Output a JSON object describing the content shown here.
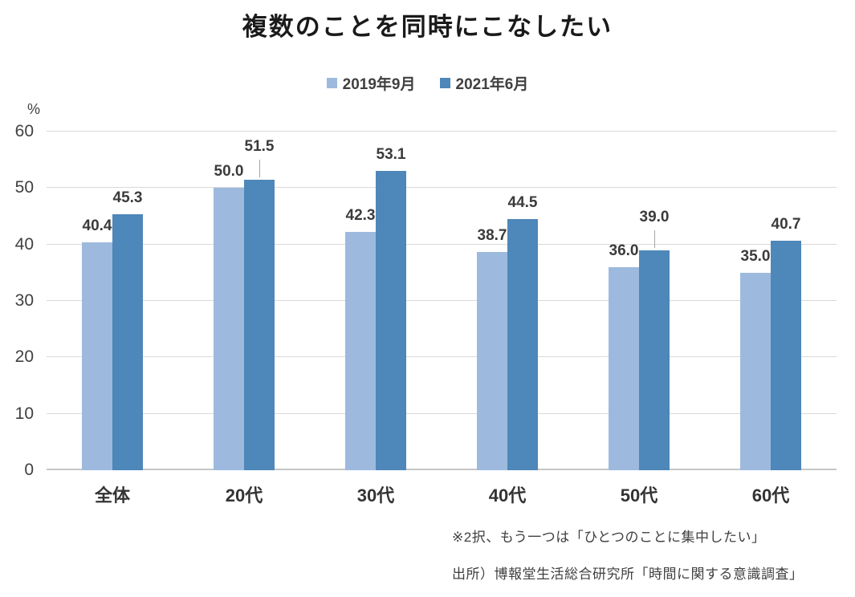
{
  "title": "複数のことを同時にこなしたい",
  "y_axis_unit": "%",
  "legend": [
    {
      "label": "2019年9月",
      "color": "#9dbade"
    },
    {
      "label": "2021年6月",
      "color": "#4e87b9"
    }
  ],
  "footnotes": [
    "※2択、もう一つは「ひとつのことに集中したい」",
    "出所）博報堂生活総合研究所「時間に関する意識調査」"
  ],
  "chart_data": {
    "type": "bar",
    "title": "複数のことを同時にこなしたい",
    "categories": [
      "全体",
      "20代",
      "30代",
      "40代",
      "50代",
      "60代"
    ],
    "series": [
      {
        "name": "2019年9月",
        "color": "#9dbade",
        "values": [
          40.4,
          50.0,
          42.3,
          38.7,
          36.0,
          35.0
        ]
      },
      {
        "name": "2021年6月",
        "color": "#4e87b9",
        "values": [
          45.3,
          51.5,
          53.1,
          44.5,
          39.0,
          40.7
        ]
      }
    ],
    "label_leader_lines": [
      [
        false,
        false,
        false,
        false,
        false,
        false
      ],
      [
        false,
        true,
        false,
        false,
        true,
        false
      ]
    ],
    "xlabel": "",
    "ylabel": "%",
    "ylim": [
      0,
      60
    ],
    "ytick_step": 10,
    "grid": true,
    "legend_position": "top",
    "data_labels": true,
    "data_label_format": "0.0"
  }
}
